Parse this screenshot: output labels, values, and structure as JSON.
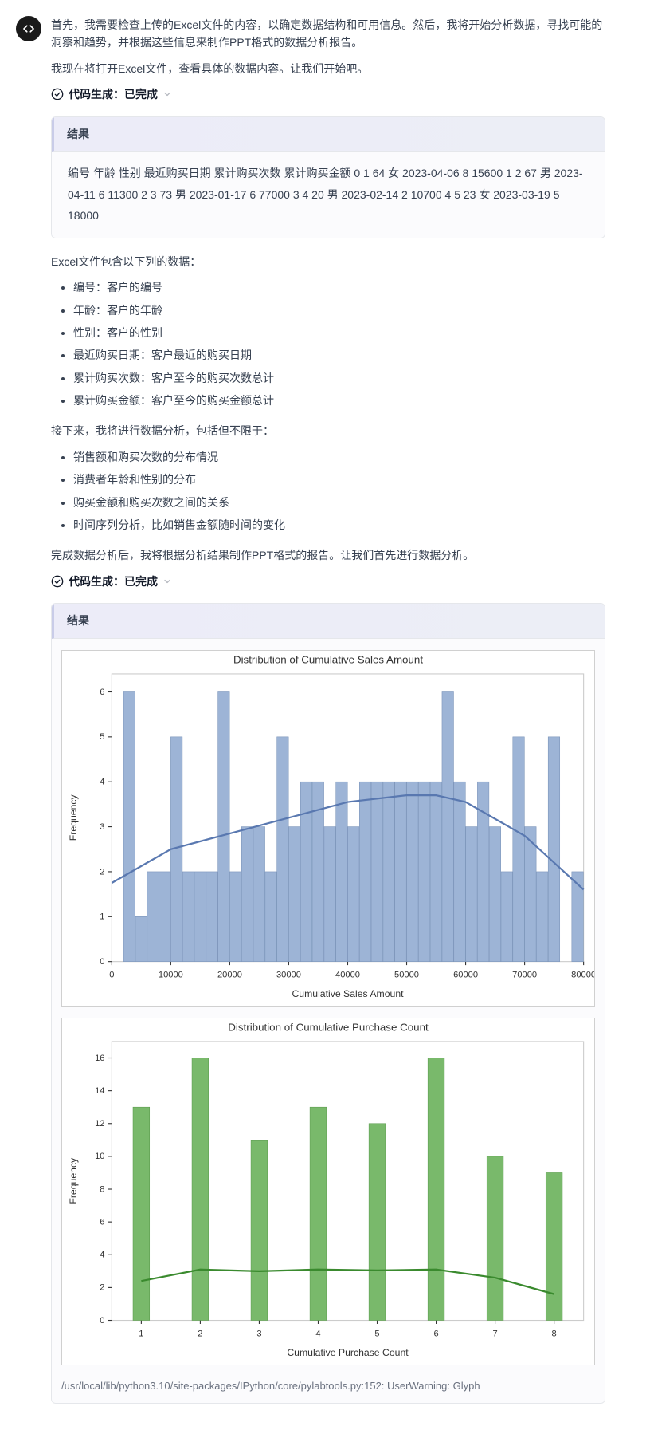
{
  "assistant": {
    "icon": "code-brackets"
  },
  "intro": {
    "p1": "首先，我需要检查上传的Excel文件的内容，以确定数据结构和可用信息。然后，我将开始分析数据，寻找可能的洞察和趋势，并根据这些信息来制作PPT格式的数据分析报告。",
    "p2": "我现在将打开Excel文件，查看具体的数据内容。让我们开始吧。"
  },
  "code_status_label": "代码生成：已完成",
  "result_label": "结果",
  "result1_text": "编号 年龄 性别 最近购买日期 累计购买次数 累计购买金额 0 1 64 女 2023-04-06 8 15600 1 2 67 男 2023-04-11 6 11300 2 3 73 男 2023-01-17 6 77000 3 4 20 男 2023-02-14 2 10700 4 5 23 女 2023-03-19 5 18000",
  "explain_header": "Excel文件包含以下列的数据：",
  "columns_list": [
    "编号：客户的编号",
    "年龄：客户的年龄",
    "性别：客户的性别",
    "最近购买日期：客户最近的购买日期",
    "累计购买次数：客户至今的购买次数总计",
    "累计购买金额：客户至今的购买金额总计"
  ],
  "analysis_intro": "接下来，我将进行数据分析，包括但不限于：",
  "analysis_list": [
    "销售额和购买次数的分布情况",
    "消费者年龄和性别的分布",
    "购买金额和购买次数之间的关系",
    "时间序列分析，比如销售金额随时间的变化"
  ],
  "analysis_close": "完成数据分析后，我将根据分析结果制作PPT格式的报告。让我们首先进行数据分析。",
  "chart1": {
    "type": "histogram",
    "title": "Distribution of Cumulative Sales Amount",
    "xlabel": "Cumulative Sales Amount",
    "ylabel": "Frequency",
    "xlim": [
      0,
      80000
    ],
    "ylim": [
      0,
      6.4
    ],
    "xtick_step": 10000,
    "ytick_step": 1,
    "bar_color": "#9db4d6",
    "bar_edge_color": "#7a93b8",
    "kde_color": "#5978b0",
    "background_color": "#ffffff",
    "border_color": "#cccccc",
    "label_fontsize": 11,
    "title_fontsize": 12,
    "bins_x": [
      2000,
      4000,
      6000,
      8000,
      10000,
      12000,
      14000,
      16000,
      18000,
      20000,
      22000,
      24000,
      26000,
      28000,
      30000,
      32000,
      34000,
      36000,
      38000,
      40000,
      42000,
      44000,
      46000,
      48000,
      50000,
      52000,
      54000,
      56000,
      58000,
      60000,
      62000,
      64000,
      66000,
      68000,
      70000,
      72000,
      74000,
      76000,
      78000,
      80000
    ],
    "bins_y": [
      6,
      1,
      2,
      2,
      5,
      2,
      2,
      2,
      6,
      2,
      3,
      3,
      2,
      5,
      3,
      4,
      4,
      3,
      4,
      3,
      4,
      4,
      4,
      4,
      4,
      4,
      4,
      6,
      4,
      3,
      4,
      3,
      2,
      5,
      3,
      2,
      5,
      0,
      2
    ],
    "kde_points": [
      [
        0,
        1.75
      ],
      [
        10000,
        2.5
      ],
      [
        20000,
        2.85
      ],
      [
        30000,
        3.2
      ],
      [
        40000,
        3.55
      ],
      [
        50000,
        3.7
      ],
      [
        55000,
        3.7
      ],
      [
        60000,
        3.55
      ],
      [
        70000,
        2.8
      ],
      [
        80000,
        1.6
      ]
    ]
  },
  "chart2": {
    "type": "histogram",
    "title": "Distribution of Cumulative Purchase Count",
    "xlabel": "Cumulative Purchase Count",
    "ylabel": "Frequency",
    "xlim": [
      0.5,
      8.5
    ],
    "ylim": [
      0,
      17
    ],
    "xtick_step": 1,
    "ytick_step": 2,
    "bar_color": "#79b96b",
    "bar_edge_color": "#5a9b4d",
    "kde_color": "#3a8a2e",
    "background_color": "#ffffff",
    "border_color": "#cccccc",
    "label_fontsize": 11,
    "title_fontsize": 12,
    "categories": [
      1,
      2,
      3,
      4,
      5,
      6,
      7,
      8
    ],
    "values": [
      13,
      16,
      11,
      13,
      12,
      16,
      10,
      9
    ],
    "kde_points": [
      [
        1,
        2.4
      ],
      [
        2,
        3.1
      ],
      [
        3,
        3.0
      ],
      [
        4,
        3.1
      ],
      [
        5,
        3.05
      ],
      [
        6,
        3.1
      ],
      [
        7,
        2.6
      ],
      [
        8,
        1.6
      ]
    ]
  },
  "warning_text": "/usr/local/lib/python3.10/site-packages/IPython/core/pylabtools.py:152: UserWarning: Glyph"
}
